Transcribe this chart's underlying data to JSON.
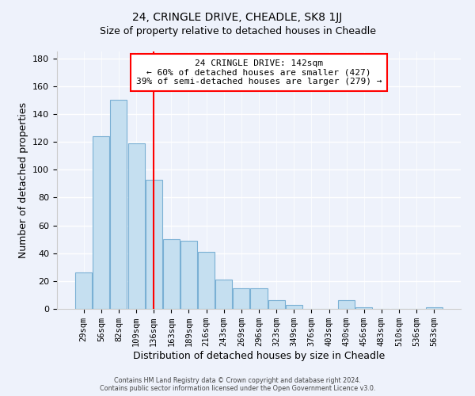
{
  "title": "24, CRINGLE DRIVE, CHEADLE, SK8 1JJ",
  "subtitle": "Size of property relative to detached houses in Cheadle",
  "xlabel": "Distribution of detached houses by size in Cheadle",
  "ylabel": "Number of detached properties",
  "bar_labels": [
    "29sqm",
    "56sqm",
    "82sqm",
    "109sqm",
    "136sqm",
    "163sqm",
    "189sqm",
    "216sqm",
    "243sqm",
    "269sqm",
    "296sqm",
    "323sqm",
    "349sqm",
    "376sqm",
    "403sqm",
    "430sqm",
    "456sqm",
    "483sqm",
    "510sqm",
    "536sqm",
    "563sqm"
  ],
  "bar_values": [
    26,
    124,
    150,
    119,
    93,
    50,
    49,
    41,
    21,
    15,
    15,
    6,
    3,
    0,
    0,
    6,
    1,
    0,
    0,
    0,
    1
  ],
  "bar_color": "#c5dff0",
  "bar_edge_color": "#7ab0d4",
  "vline_x": 4.0,
  "vline_color": "red",
  "annotation_line1": "24 CRINGLE DRIVE: 142sqm",
  "annotation_line2": "← 60% of detached houses are smaller (427)",
  "annotation_line3": "39% of semi-detached houses are larger (279) →",
  "annotation_box_color": "white",
  "annotation_box_edge": "red",
  "ylim": [
    0,
    185
  ],
  "yticks": [
    0,
    20,
    40,
    60,
    80,
    100,
    120,
    140,
    160,
    180
  ],
  "footer_line1": "Contains HM Land Registry data © Crown copyright and database right 2024.",
  "footer_line2": "Contains public sector information licensed under the Open Government Licence v3.0.",
  "bg_color": "#eef2fb"
}
